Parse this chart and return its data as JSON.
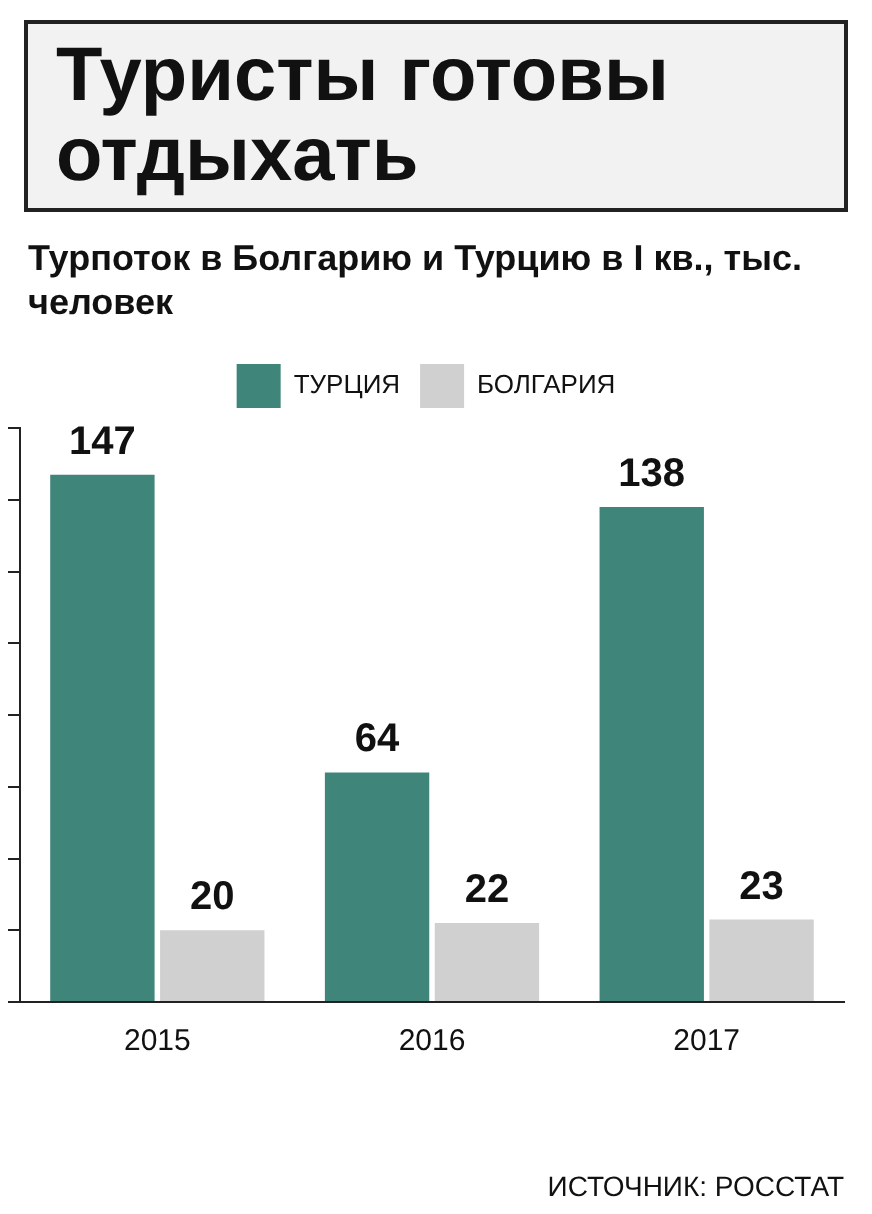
{
  "chart_data": {
    "type": "bar",
    "title": "Туристы готовы отдыхать",
    "subtitle": "Турпоток в Болгарию и Турцию в I кв., тыс. человек",
    "categories": [
      "2015",
      "2016",
      "2017"
    ],
    "series": [
      {
        "name": "ТУРЦИЯ",
        "color": "#3f857a",
        "values": [
          147,
          64,
          138
        ]
      },
      {
        "name": "БОЛГАРИЯ",
        "color": "#d0d0d0",
        "values": [
          20,
          22,
          23
        ]
      }
    ],
    "data_labels": true,
    "legend": "top",
    "tick_labels": "x",
    "grid": false,
    "annotations": [
      "ИСТОЧНИК: РОССТАТ"
    ]
  }
}
